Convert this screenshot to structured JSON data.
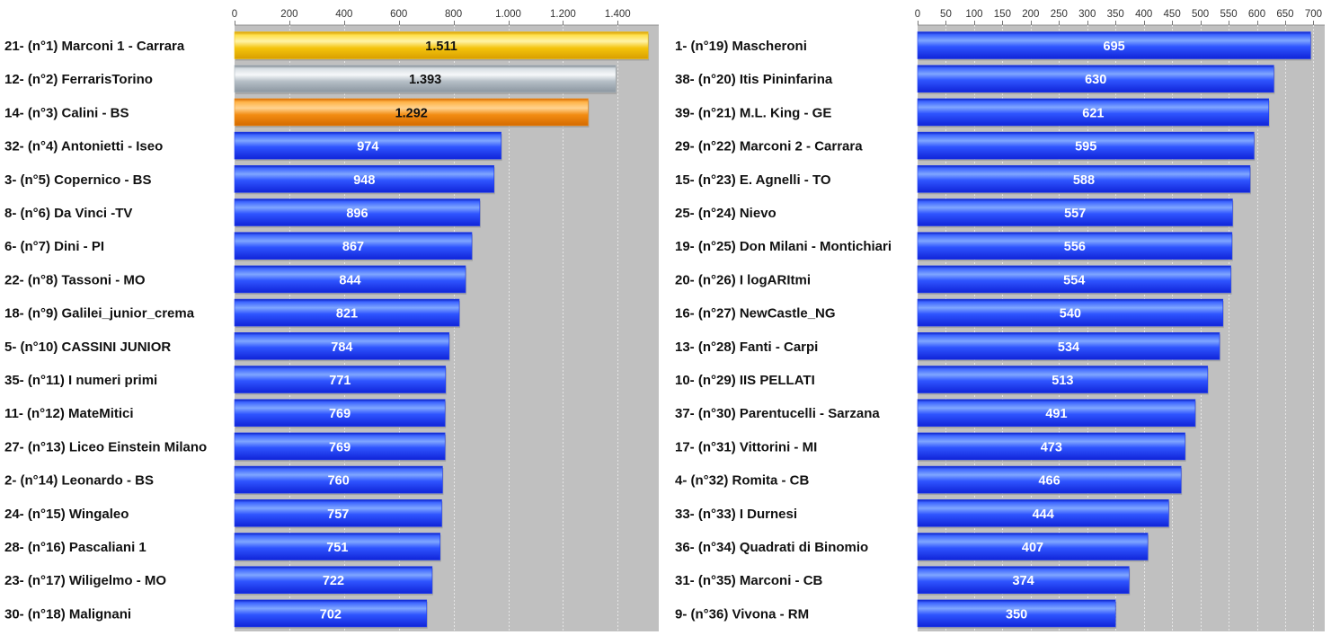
{
  "colors": {
    "plot_background": "#c0c0c0",
    "bar_blue": "#1f3df2",
    "bar_gold": "#f2c20a",
    "bar_silver": "#a9b3bb",
    "bar_bronze": "#f08a10",
    "label_on_blue": "#ffffff",
    "label_on_medal": "#111111"
  },
  "chart_data": [
    {
      "type": "bar",
      "orientation": "horizontal",
      "xlim": [
        0,
        1550
      ],
      "ticks": [
        0,
        200,
        400,
        600,
        800,
        1000,
        1200,
        1400
      ],
      "tick_labels": [
        "0",
        "200",
        "400",
        "600",
        "800",
        "1.000",
        "1.200",
        "1.400"
      ],
      "grid": true,
      "categories": [
        "21- (n°1) Marconi 1 - Carrara",
        "12- (n°2) FerrarisTorino",
        "14- (n°3) Calini - BS",
        "32- (n°4) Antonietti - Iseo",
        "3- (n°5) Copernico - BS",
        "8- (n°6) Da Vinci -TV",
        "6- (n°7) Dini - PI",
        "22- (n°8) Tassoni - MO",
        "18- (n°9) Galilei_junior_crema",
        "5- (n°10) CASSINI JUNIOR",
        "35- (n°11) I numeri primi",
        "11- (n°12) MateMitici",
        "27- (n°13) Liceo Einstein Milano",
        "2- (n°14) Leonardo - BS",
        "24- (n°15) Wingaleo",
        "28- (n°16) Pascaliani 1",
        "23- (n°17) Wiligelmo - MO",
        "30- (n°18) Malignani"
      ],
      "values": [
        1511,
        1393,
        1292,
        974,
        948,
        896,
        867,
        844,
        821,
        784,
        771,
        769,
        769,
        760,
        757,
        751,
        722,
        702
      ],
      "value_labels": [
        "1.511",
        "1.393",
        "1.292",
        "974",
        "948",
        "896",
        "867",
        "844",
        "821",
        "784",
        "771",
        "769",
        "769",
        "760",
        "757",
        "751",
        "722",
        "702"
      ],
      "bar_colors": [
        "bar_gold",
        "bar_silver",
        "bar_bronze"
      ]
    },
    {
      "type": "bar",
      "orientation": "horizontal",
      "xlim": [
        0,
        720
      ],
      "ticks": [
        0,
        50,
        100,
        150,
        200,
        250,
        300,
        350,
        400,
        450,
        500,
        550,
        600,
        650,
        700
      ],
      "tick_labels": [
        "0",
        "50",
        "100",
        "150",
        "200",
        "250",
        "300",
        "350",
        "400",
        "450",
        "500",
        "550",
        "600",
        "650",
        "700"
      ],
      "grid": true,
      "categories": [
        "1- (n°19) Mascheroni",
        "38- (n°20) Itis Pininfarina",
        "39- (n°21) M.L. King - GE",
        "29- (n°22) Marconi 2 - Carrara",
        "15- (n°23) E. Agnelli - TO",
        "25- (n°24) Nievo",
        "19- (n°25) Don Milani - Montichiari",
        "20- (n°26) I logARItmi",
        "16- (n°27) NewCastle_NG",
        "13- (n°28) Fanti - Carpi",
        "10- (n°29) IIS PELLATI",
        "37- (n°30) Parentucelli - Sarzana",
        "17- (n°31) Vittorini - MI",
        "4- (n°32) Romita - CB",
        "33- (n°33) I Durnesi",
        "36- (n°34) Quadrati di Binomio",
        "31- (n°35) Marconi - CB",
        "9- (n°36) Vivona - RM"
      ],
      "values": [
        695,
        630,
        621,
        595,
        588,
        557,
        556,
        554,
        540,
        534,
        513,
        491,
        473,
        466,
        444,
        407,
        374,
        350
      ],
      "value_labels": [
        "695",
        "630",
        "621",
        "595",
        "588",
        "557",
        "556",
        "554",
        "540",
        "534",
        "513",
        "491",
        "473",
        "466",
        "444",
        "407",
        "374",
        "350"
      ],
      "bar_colors": []
    }
  ]
}
